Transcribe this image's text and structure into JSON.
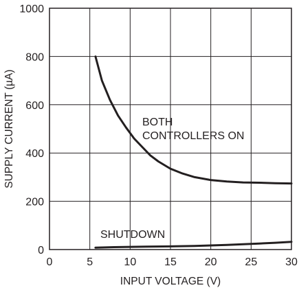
{
  "chart_data": {
    "type": "line",
    "xlabel": "INPUT VOLTAGE (V)",
    "ylabel": "SUPPLY CURRENT (µA)",
    "xlim": [
      0,
      30
    ],
    "ylim": [
      0,
      1000
    ],
    "xticks": [
      "0",
      "5",
      "10",
      "15",
      "20",
      "25",
      "30"
    ],
    "yticks": [
      "0",
      "200",
      "400",
      "600",
      "800",
      "1000"
    ],
    "grid": true,
    "series": [
      {
        "name": "BOTH CONTROLLERS ON",
        "label_lines": [
          "BOTH",
          "CONTROLLERS ON"
        ],
        "x": [
          5.7,
          6.5,
          7.5,
          8.5,
          9.5,
          10.5,
          11.5,
          12.5,
          13.5,
          15,
          16.5,
          18,
          20,
          22,
          24,
          26,
          28,
          30
        ],
        "y": [
          800,
          700,
          620,
          555,
          505,
          460,
          425,
          390,
          365,
          335,
          315,
          300,
          288,
          282,
          278,
          277,
          275,
          274
        ]
      },
      {
        "name": "SHUTDOWN",
        "label_lines": [
          "SHUTDOWN"
        ],
        "x": [
          5.7,
          8,
          10,
          12,
          15,
          18,
          20,
          22,
          24,
          26,
          28,
          30
        ],
        "y": [
          8,
          10,
          11,
          12,
          13,
          15,
          17,
          19,
          22,
          25,
          28,
          32
        ]
      }
    ]
  }
}
